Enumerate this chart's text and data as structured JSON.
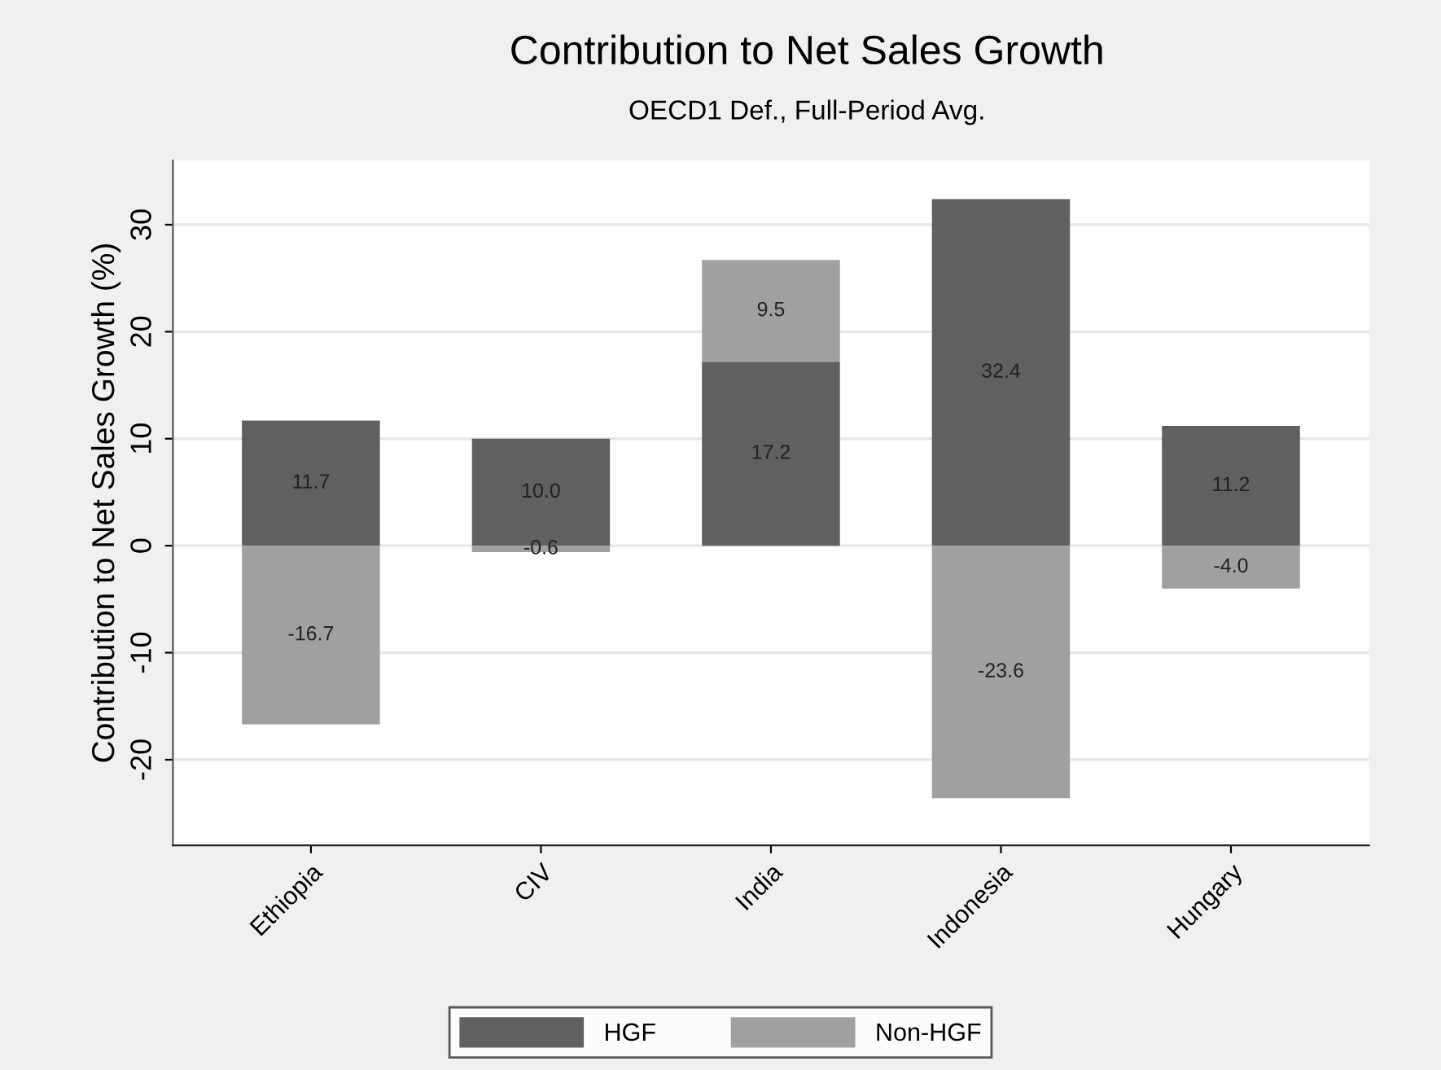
{
  "chart_data": {
    "type": "bar",
    "title": "Contribution to Net Sales Growth",
    "subtitle": "OECD1 Def., Full-Period Avg.",
    "ylabel": "Contribution to Net Sales Growth (%)",
    "categories": [
      "Ethiopia",
      "CIV",
      "India",
      "Indonesia",
      "Hungary"
    ],
    "series": [
      {
        "name": "HGF",
        "color": "#606060",
        "values": [
          11.7,
          10.0,
          17.2,
          32.4,
          11.2
        ],
        "value_labels": [
          "11.7",
          "10.0",
          "17.2",
          "32.4",
          "11.2"
        ]
      },
      {
        "name": "Non-HGF",
        "color": "#a0a0a0",
        "values": [
          -16.7,
          -0.6,
          9.5,
          -23.6,
          -4.0
        ],
        "value_labels": [
          "-16.7",
          "-0.6",
          "9.5",
          "-23.6",
          "-4.0"
        ]
      }
    ],
    "stacked": true,
    "ylim": [
      -28,
      36
    ],
    "yticks": [
      -20,
      -10,
      0,
      10,
      20,
      30
    ],
    "grid": "y",
    "legend": "bottom"
  }
}
